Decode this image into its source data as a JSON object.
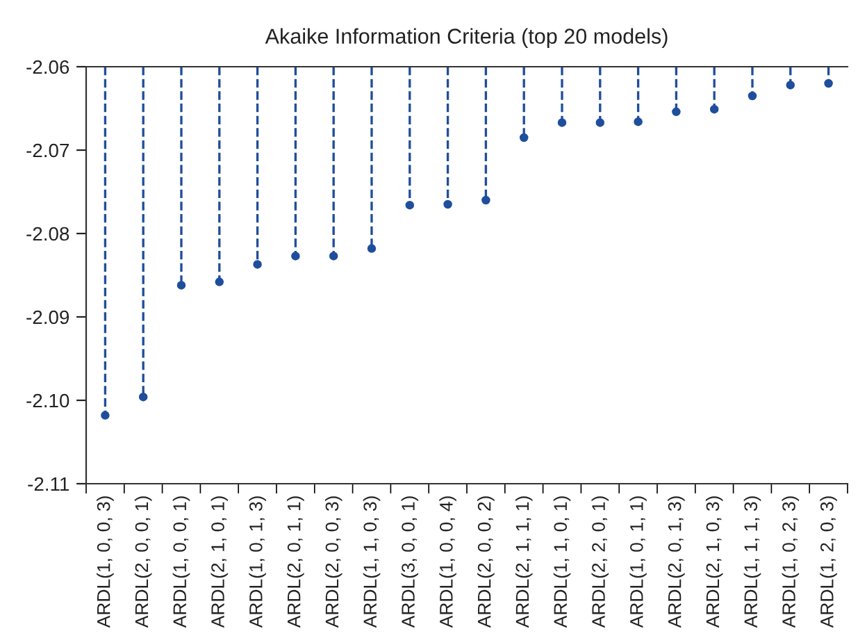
{
  "chart_data": {
    "type": "lollipop",
    "title": "Akaike Information Criteria (top 20 models)",
    "categories": [
      "ARDL(1, 0, 0, 3)",
      "ARDL(2, 0, 0, 1)",
      "ARDL(1, 0, 0, 1)",
      "ARDL(2, 1, 0, 1)",
      "ARDL(1, 0, 1, 3)",
      "ARDL(2, 0, 1, 1)",
      "ARDL(2, 0, 0, 3)",
      "ARDL(1, 1, 0, 3)",
      "ARDL(3, 0, 0, 1)",
      "ARDL(1, 0, 0, 4)",
      "ARDL(2, 0, 0, 2)",
      "ARDL(2, 1, 1, 1)",
      "ARDL(1, 1, 0, 1)",
      "ARDL(2, 2, 0, 1)",
      "ARDL(1, 0, 1, 1)",
      "ARDL(2, 0, 1, 3)",
      "ARDL(2, 1, 0, 3)",
      "ARDL(1, 1, 1, 3)",
      "ARDL(1, 0, 2, 3)",
      "ARDL(1, 2, 0, 3)"
    ],
    "values": [
      -2.1018,
      -2.0996,
      -2.0862,
      -2.0858,
      -2.0837,
      -2.0827,
      -2.0827,
      -2.0818,
      -2.0766,
      -2.0765,
      -2.076,
      -2.0685,
      -2.0667,
      -2.0667,
      -2.0666,
      -2.0654,
      -2.0651,
      -2.0635,
      -2.0622,
      -2.062
    ],
    "color": "#1f4e9c",
    "ylim": [
      -2.11,
      -2.06
    ],
    "yticks": [
      {
        "value": -2.11,
        "label": "-2.11"
      },
      {
        "value": -2.1,
        "label": "-2.10"
      },
      {
        "value": -2.09,
        "label": "-2.09"
      },
      {
        "value": -2.08,
        "label": "-2.08"
      },
      {
        "value": -2.07,
        "label": "-2.07"
      },
      {
        "value": -2.06,
        "label": "-2.06"
      }
    ],
    "marker": "circle",
    "line_style": "dashed"
  }
}
